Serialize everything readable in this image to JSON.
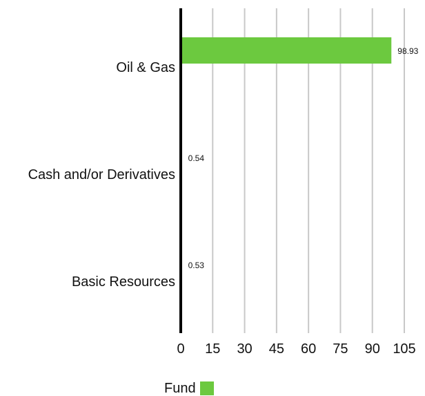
{
  "chart_data": {
    "type": "bar",
    "orientation": "horizontal",
    "categories": [
      "Oil & Gas",
      "Cash and/or Derivatives",
      "Basic Resources"
    ],
    "series": [
      {
        "name": "Fund",
        "values": [
          98.93,
          0.54,
          0.53
        ],
        "color": "#6cc93f"
      }
    ],
    "data_labels": [
      "98.93",
      "0.54",
      "0.53"
    ],
    "x_ticks": [
      "0",
      "15",
      "30",
      "45",
      "60",
      "75",
      "90",
      "105"
    ],
    "xlim": [
      0,
      105
    ],
    "grid": true,
    "legend_position": "bottom-center"
  },
  "legend": {
    "label": "Fund",
    "color": "#6cc93f"
  }
}
